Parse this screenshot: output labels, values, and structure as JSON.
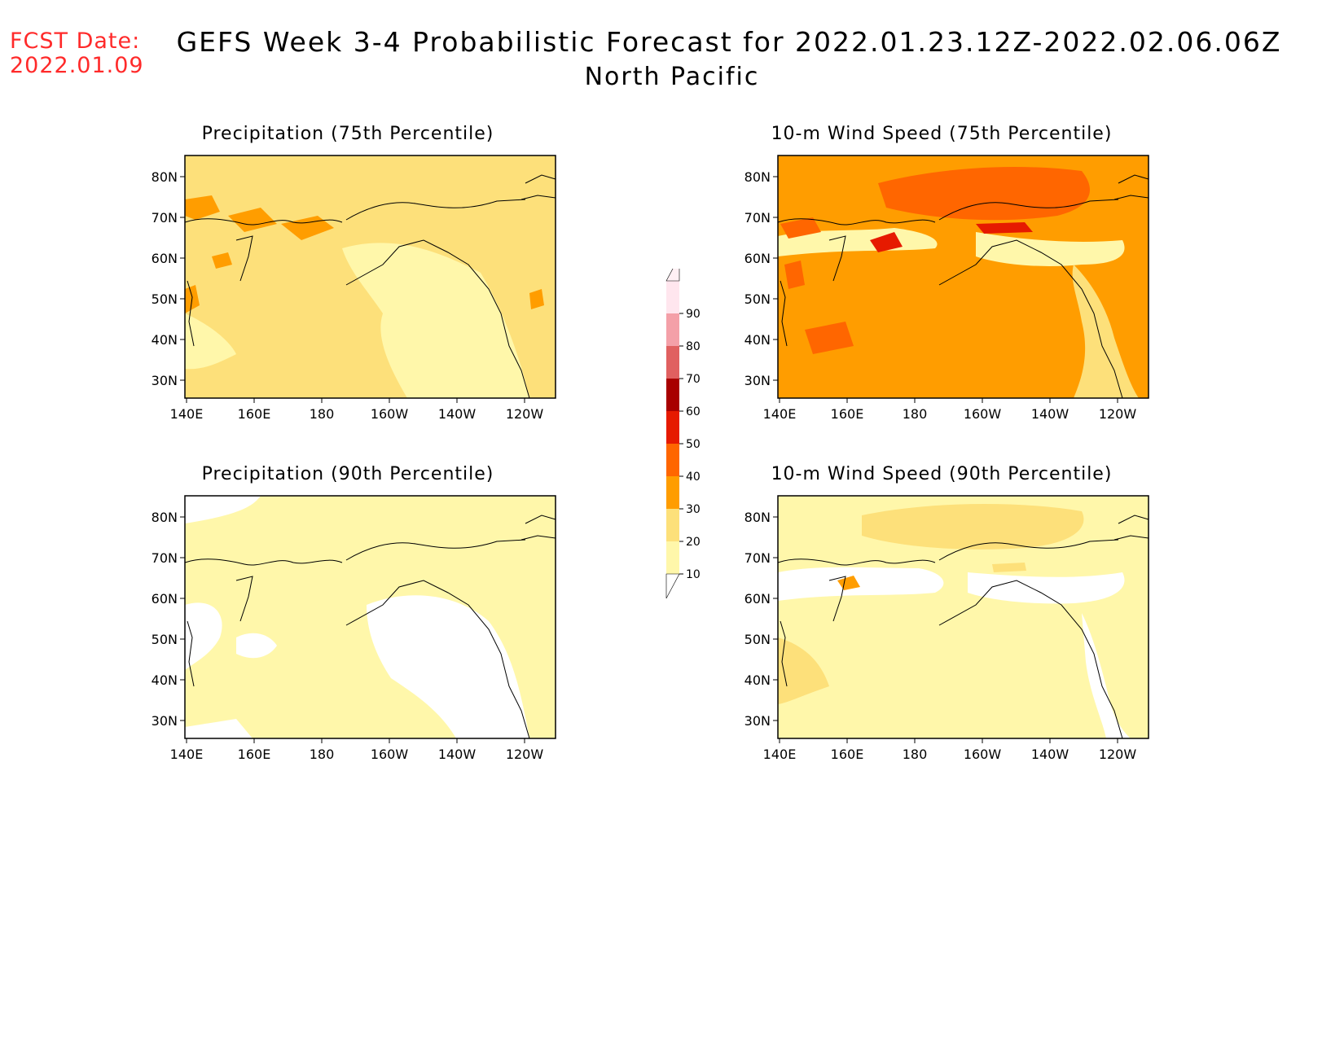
{
  "header": {
    "fcst_label": "FCST Date:",
    "fcst_date": "2022.01.09",
    "title": "GEFS Week 3-4 Probabilistic Forecast for 2022.01.23.12Z-2022.02.06.06Z",
    "subtitle": "North Pacific"
  },
  "axes": {
    "lon_ticks": [
      "140E",
      "160E",
      "180",
      "160W",
      "140W",
      "120W"
    ],
    "lat_ticks": [
      "80N",
      "70N",
      "60N",
      "50N",
      "40N",
      "30N"
    ]
  },
  "panels": [
    {
      "id": "precip75",
      "title": "Precipitation (75th Percentile)"
    },
    {
      "id": "wind75",
      "title": "10-m Wind Speed (75th Percentile)"
    },
    {
      "id": "precip90",
      "title": "Precipitation (90th Percentile)"
    },
    {
      "id": "wind90",
      "title": "10-m Wind Speed (90th Percentile)"
    }
  ],
  "colorbar": {
    "levels": [
      "10",
      "20",
      "30",
      "40",
      "50",
      "60",
      "70",
      "80",
      "90"
    ],
    "colors": [
      "#fff7aa",
      "#fde07a",
      "#ff9d00",
      "#ff6600",
      "#e61a00",
      "#a80000",
      "#e06060",
      "#f4a0a8",
      "#ffe6ee"
    ]
  }
}
